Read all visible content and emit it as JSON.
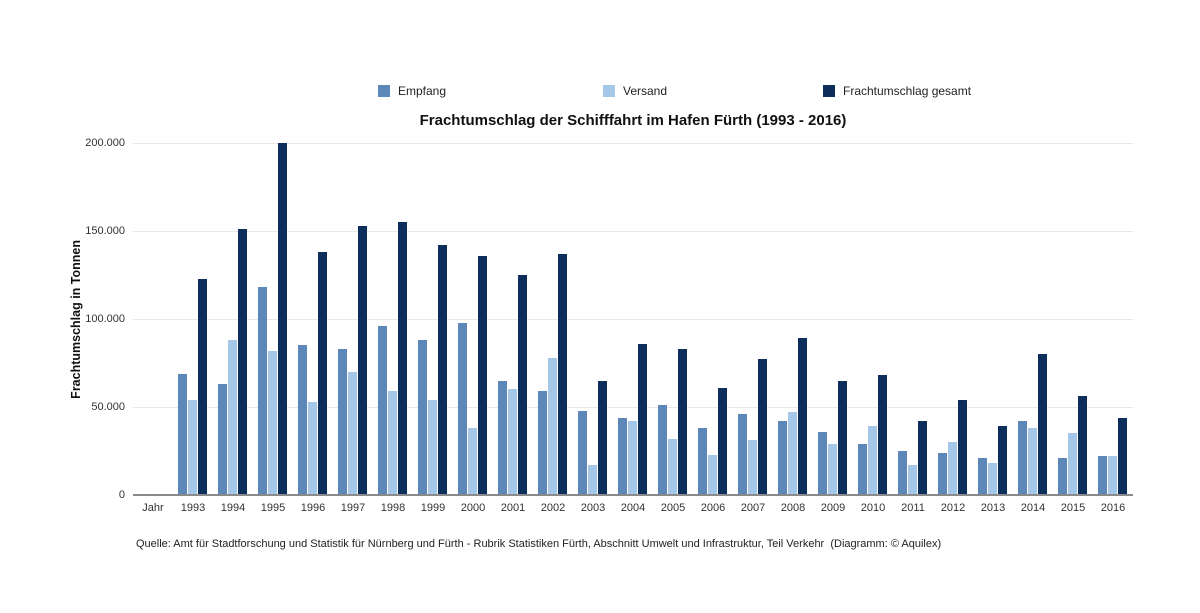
{
  "footer": {
    "text": "Quelle: Amt für Stadtforschung und Statistik für Nürnberg und Fürth - Rubrik Statistiken Fürth, Abschnitt Umwelt und Infrastruktur, Teil Verkehr  (Diagramm: © Aquilex)"
  },
  "chart_data": {
    "type": "bar",
    "title": "Frachtumschlag der Schifffahrt im Hafen Fürth (1993 - 2016)",
    "xlabel": "Jahr",
    "ylabel": "Frachtumschlag in Tonnen",
    "ylim": [
      0,
      200000
    ],
    "ytick_values": [
      0,
      50000,
      100000,
      150000,
      200000
    ],
    "ytick_labels": [
      "0",
      "50.000",
      "100.000",
      "150.000",
      "200.000"
    ],
    "grid": true,
    "legend_position": "top",
    "background": "#ffffff",
    "gridline_color": "#e8e8e8",
    "axis_color": "#8a8a8a",
    "categories": [
      1993,
      1994,
      1995,
      1996,
      1997,
      1998,
      1999,
      2000,
      2001,
      2002,
      2003,
      2004,
      2005,
      2006,
      2007,
      2008,
      2009,
      2010,
      2011,
      2012,
      2013,
      2014,
      2015,
      2016
    ],
    "series": [
      {
        "name": "Empfang",
        "color": "#5E87B9",
        "values": [
          69000,
          63000,
          118000,
          85000,
          83000,
          96000,
          88000,
          98000,
          65000,
          59000,
          48000,
          44000,
          51000,
          38000,
          46000,
          42000,
          36000,
          29000,
          25000,
          24000,
          21000,
          42000,
          21000,
          22000
        ]
      },
      {
        "name": "Versand",
        "color": "#A5C8E9",
        "values": [
          54000,
          88000,
          82000,
          53000,
          70000,
          59000,
          54000,
          38000,
          60000,
          78000,
          17000,
          42000,
          32000,
          23000,
          31000,
          47000,
          29000,
          39000,
          17000,
          30000,
          18000,
          38000,
          35000,
          22000
        ]
      },
      {
        "name": "Frachtumschlag gesamt",
        "color": "#0D2E5A",
        "values": [
          123000,
          151000,
          200000,
          138000,
          153000,
          155000,
          142000,
          136000,
          125000,
          137000,
          65000,
          86000,
          83000,
          61000,
          77000,
          89000,
          65000,
          68000,
          42000,
          54000,
          39000,
          80000,
          56000,
          44000
        ]
      }
    ]
  }
}
